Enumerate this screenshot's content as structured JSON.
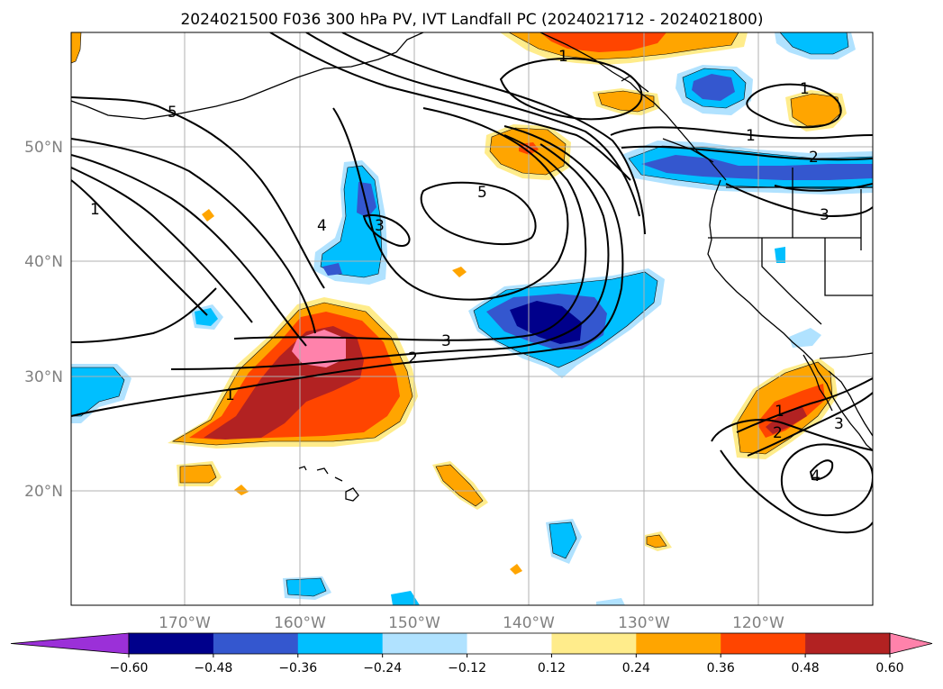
{
  "title": "2024021500 F036 300 hPa PV, IVT Landfall PC (2024021712 - 2024021800)",
  "axes": {
    "lat_ticks": [
      "50°N",
      "40°N",
      "30°N",
      "20°N"
    ],
    "lon_ticks": [
      "170°W",
      "160°W",
      "150°W",
      "140°W",
      "130°W",
      "120°W"
    ]
  },
  "colorbar": {
    "levels": [
      "−0.60",
      "−0.48",
      "−0.36",
      "−0.24",
      "−0.12",
      "0.12",
      "0.24",
      "0.36",
      "0.48",
      "0.60"
    ],
    "colors": [
      "#9b30d8",
      "#00008b",
      "#3457cf",
      "#00bfff",
      "#b0e2ff",
      "#ffffff",
      "#ffec8b",
      "#ffa500",
      "#ff4500",
      "#b22222",
      "#ff82ab"
    ]
  },
  "contour_labels": [
    "1",
    "2",
    "3",
    "4",
    "5"
  ],
  "colors": {
    "contour": "#000000",
    "grid": "#b0b0b0",
    "coast": "#000000"
  }
}
